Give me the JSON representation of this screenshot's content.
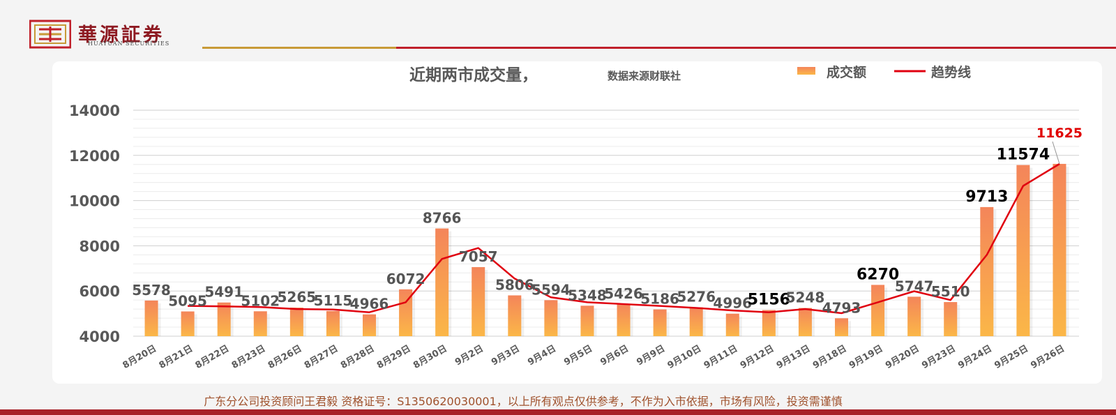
{
  "brand": {
    "name": "華源証券",
    "name_en": "HUAYUAN SECURITIES"
  },
  "footer": {
    "disclaimer": "广东分公司投资顾问王君毅  资格证号：S1350620030001，以上所有观点仅供参考，不作为入市依据，市场有风险，投资需谨慎"
  },
  "chart_data": {
    "type": "bar",
    "title": "近期两市成交量，",
    "subtitle": "数据来源财联社",
    "legend": [
      "成交额",
      "趋势线"
    ],
    "legend_position": "top-right",
    "grid": true,
    "ylim": [
      4000,
      14000
    ],
    "yticks": [
      4000,
      6000,
      8000,
      10000,
      12000,
      14000
    ],
    "categories": [
      "8月20日",
      "8月21日",
      "8月22日",
      "8月23日",
      "8月26日",
      "8月27日",
      "8月28日",
      "8月29日",
      "8月30日",
      "9月2日",
      "9月3日",
      "9月4日",
      "9月5日",
      "9月6日",
      "9月9日",
      "9月10日",
      "9月11日",
      "9月12日",
      "9月13日",
      "9月18日",
      "9月19日",
      "9月20日",
      "9月23日",
      "9月24日",
      "9月25日",
      "9月26日"
    ],
    "series": [
      {
        "name": "成交额",
        "type": "bar",
        "values": [
          5578,
          5095,
          5491,
          5102,
          5265,
          5115,
          4966,
          6072,
          8766,
          7057,
          5806,
          5594,
          5348,
          5426,
          5186,
          5276,
          4996,
          5156,
          5248,
          4793,
          6270,
          5747,
          5510,
          9713,
          11574,
          11625
        ]
      },
      {
        "name": "趋势线",
        "type": "line",
        "values": [
          null,
          5340,
          5320,
          5290,
          5200,
          5180,
          5060,
          5500,
          7420,
          7900,
          6550,
          5720,
          5500,
          5420,
          5340,
          5250,
          5140,
          5060,
          5200,
          5020,
          5500,
          5990,
          5600,
          7600,
          10650,
          11625
        ]
      }
    ],
    "data_labels": [
      "5578",
      "5095",
      "5491",
      "5102",
      "5265",
      "5115",
      "4966",
      "6072",
      "8766",
      "7057",
      "5806",
      "5594",
      "5348",
      "5426",
      "5186",
      "5276",
      "4996",
      "5156",
      "5248",
      "4793",
      "6270",
      "5747",
      "5510",
      "9713",
      "11574",
      "11625"
    ],
    "colors": {
      "bar_top": "#f4855a",
      "bar_bottom": "#fbb748",
      "trend_line": "#e0000f",
      "label_default": "#555555",
      "label_emphasis": "#000000",
      "label_highlight": "#e00000",
      "axis_text": "#595959",
      "grid": "#d9d9d9"
    }
  }
}
